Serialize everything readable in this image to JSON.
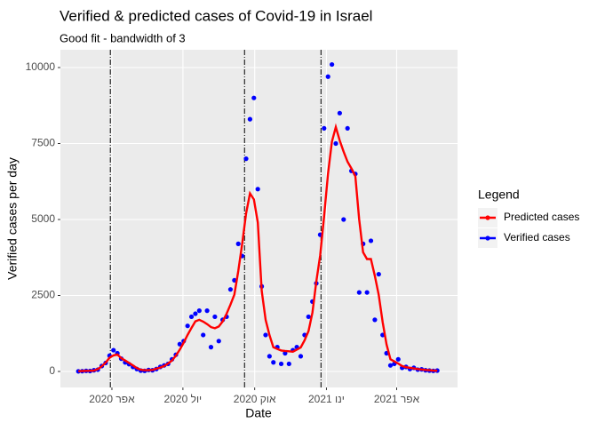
{
  "chart_data": {
    "type": "line",
    "title": "Verified & predicted cases of Covid-19 in Israel",
    "subtitle": "Good fit - bandwidth of 3",
    "x_label": "Date",
    "y_label": "Verified cases per day",
    "legend_title": "Legend",
    "legend_position": "right",
    "x": [
      48,
      53,
      58,
      63,
      68,
      73,
      78,
      83,
      88,
      93,
      98,
      103,
      108,
      113,
      118,
      123,
      128,
      133,
      138,
      143,
      148,
      153,
      158,
      163,
      168,
      173,
      178,
      183,
      188,
      193,
      198,
      203,
      208,
      213,
      218,
      223,
      228,
      233,
      238,
      243,
      248,
      253,
      258,
      263,
      268,
      273,
      278,
      283,
      288,
      293,
      298,
      303,
      308,
      313,
      318,
      323,
      328,
      333,
      338,
      343,
      348,
      353,
      358,
      363,
      368,
      373,
      378,
      383,
      388,
      393,
      398,
      403,
      408,
      413,
      418,
      423,
      428,
      433,
      438,
      443,
      448,
      453,
      458,
      463,
      468,
      473,
      478,
      483,
      488,
      493,
      498,
      503,
      508
    ],
    "series": [
      {
        "name": "Predicted cases",
        "color": "#ff0000",
        "mark": "line",
        "values": [
          10,
          15,
          20,
          25,
          30,
          80,
          170,
          290,
          450,
          530,
          560,
          440,
          360,
          280,
          200,
          110,
          55,
          40,
          45,
          50,
          90,
          130,
          180,
          260,
          360,
          520,
          720,
          950,
          1200,
          1430,
          1650,
          1700,
          1640,
          1560,
          1460,
          1420,
          1480,
          1650,
          1900,
          2200,
          2530,
          3300,
          4200,
          5200,
          5860,
          5660,
          4900,
          2650,
          1700,
          1190,
          800,
          740,
          690,
          675,
          665,
          650,
          720,
          790,
          1030,
          1330,
          1940,
          2950,
          3820,
          5100,
          6500,
          7560,
          8040,
          7600,
          7230,
          6900,
          6680,
          6420,
          5000,
          3920,
          3700,
          3700,
          3150,
          2520,
          1630,
          890,
          400,
          330,
          260,
          180,
          140,
          120,
          100,
          80,
          65,
          50,
          40,
          30,
          25
        ]
      },
      {
        "name": "Verified cases",
        "color": "#0000ff",
        "mark": "point",
        "values": [
          5,
          10,
          20,
          15,
          40,
          60,
          180,
          280,
          520,
          700,
          600,
          420,
          300,
          240,
          150,
          80,
          30,
          20,
          50,
          40,
          80,
          150,
          200,
          250,
          400,
          550,
          900,
          1000,
          1500,
          1800,
          1900,
          2000,
          1200,
          2000,
          800,
          1800,
          1000,
          1700,
          1800,
          2700,
          3000,
          4200,
          3800,
          7000,
          8300,
          9000,
          6000,
          2800,
          1200,
          500,
          300,
          800,
          250,
          600,
          250,
          700,
          800,
          500,
          1200,
          1800,
          2300,
          2900,
          4500,
          8000,
          9700,
          10100,
          7500,
          8500,
          5000,
          8000,
          6600,
          6500,
          2600,
          4200,
          2600,
          4300,
          1700,
          3200,
          1200,
          600,
          200,
          250,
          400,
          120,
          150,
          80,
          120,
          60,
          70,
          40,
          30,
          20,
          30
        ]
      }
    ],
    "xlim": [
      25,
      534
    ],
    "ylim": [
      -526,
      10585
    ],
    "xticks": [
      {
        "value": 91,
        "label": "אפר 2020"
      },
      {
        "value": 182,
        "label": "יול 2020"
      },
      {
        "value": 274,
        "label": "אוק 2020"
      },
      {
        "value": 366,
        "label": "ינו 2021"
      },
      {
        "value": 456,
        "label": "אפר 2021"
      }
    ],
    "yticks": [
      0,
      2500,
      5000,
      7500,
      10000
    ],
    "vlines": [
      89,
      261,
      359
    ],
    "grid": true
  }
}
